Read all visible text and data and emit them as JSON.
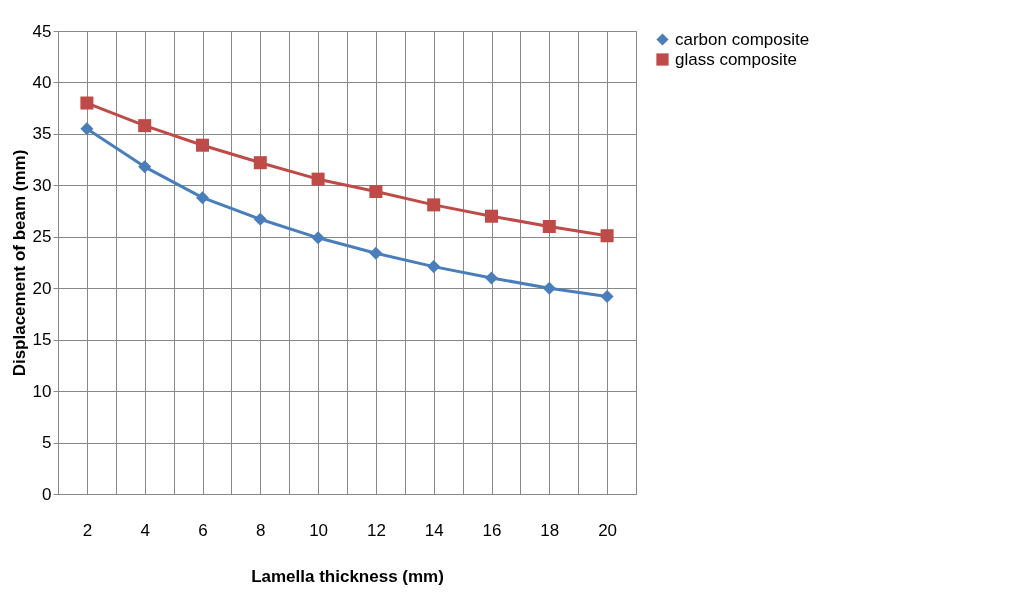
{
  "chart_data": {
    "type": "line",
    "xlabel": "Lamella thickness (mm)",
    "ylabel": "Displacement  of beam (mm)",
    "categories": [
      "2",
      "4",
      "6",
      "8",
      "10",
      "12",
      "14",
      "16",
      "18",
      "20"
    ],
    "series": [
      {
        "name": "carbon composite",
        "color": "#4a7ebb",
        "marker": "diamond",
        "values": [
          35.5,
          31.8,
          28.8,
          26.7,
          24.9,
          23.4,
          22.1,
          21.0,
          20.0,
          19.2
        ]
      },
      {
        "name": "glass composite",
        "color": "#be4b48",
        "marker": "square",
        "values": [
          38.0,
          35.8,
          33.9,
          32.2,
          30.6,
          29.4,
          28.1,
          27.0,
          26.0,
          25.1
        ]
      }
    ],
    "ylim": [
      0,
      45
    ],
    "yticks": [
      0,
      5,
      10,
      15,
      20,
      25,
      30,
      35,
      40,
      45
    ],
    "grid": true,
    "legend": "right",
    "line_style": "solid"
  }
}
